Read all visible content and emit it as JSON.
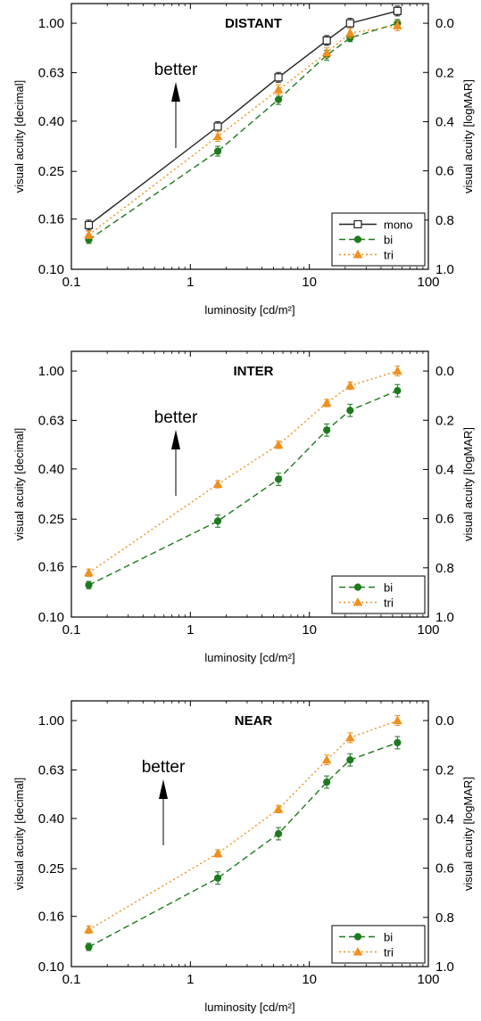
{
  "colors": {
    "mono": "#222222",
    "bi": "#1f7a1f",
    "tri": "#f0901e",
    "frame": "#000000"
  },
  "chart_data": [
    {
      "type": "line",
      "title": "DISTANT",
      "annotation": "better",
      "xlabel": "luminosity [cd/m²]",
      "ylabel": "visual acuity [decimal]",
      "ylabel_right": "visual acuity [logMAR]",
      "x_scale": "log",
      "xlim": [
        0.1,
        100
      ],
      "ylim_logMAR": [
        1.0,
        -0.08
      ],
      "x_ticks": [
        "0.1",
        "1",
        "10",
        "100"
      ],
      "y_ticks": [
        "0.10",
        "0.16",
        "0.25",
        "0.40",
        "0.63",
        "1.00"
      ],
      "y_ticks_right": [
        "0.0",
        "0.2",
        "0.4",
        "0.6",
        "0.8",
        "1.0"
      ],
      "legend": {
        "position": "bottom-right",
        "entries": [
          "mono",
          "bi",
          "tri"
        ]
      },
      "x": [
        0.14,
        1.7,
        5.5,
        14,
        22,
        55
      ],
      "series": [
        {
          "name": "mono",
          "marker": "open-square",
          "line": "solid",
          "color": "#222222",
          "values_logMAR": [
            0.82,
            0.42,
            0.22,
            0.07,
            0.0,
            -0.05
          ],
          "err": [
            0.02,
            0.02,
            0.02,
            0.02,
            0.02,
            0.02
          ]
        },
        {
          "name": "bi",
          "marker": "circle",
          "line": "dashed",
          "color": "#1f7a1f",
          "values_logMAR": [
            0.88,
            0.52,
            0.31,
            0.13,
            0.06,
            0.0
          ],
          "err": [
            0.015,
            0.02,
            0.02,
            0.02,
            0.015,
            0.015
          ]
        },
        {
          "name": "tri",
          "marker": "triangle",
          "line": "dotted",
          "color": "#f0901e",
          "values_logMAR": [
            0.86,
            0.46,
            0.27,
            0.12,
            0.04,
            0.01
          ],
          "err": [
            0.015,
            0.02,
            0.02,
            0.02,
            0.02,
            0.02
          ]
        }
      ]
    },
    {
      "type": "line",
      "title": "INTER",
      "annotation": "better",
      "xlabel": "luminosity [cd/m²]",
      "ylabel": "visual acuity [decimal]",
      "ylabel_right": "visual acuity [logMAR]",
      "x_scale": "log",
      "xlim": [
        0.1,
        100
      ],
      "ylim_logMAR": [
        1.0,
        -0.08
      ],
      "x_ticks": [
        "0.1",
        "1",
        "10",
        "100"
      ],
      "y_ticks": [
        "0.10",
        "0.16",
        "0.25",
        "0.40",
        "0.63",
        "1.00"
      ],
      "y_ticks_right": [
        "0.0",
        "0.2",
        "0.4",
        "0.6",
        "0.8",
        "1.0"
      ],
      "legend": {
        "position": "bottom-right",
        "entries": [
          "bi",
          "tri"
        ]
      },
      "x": [
        0.14,
        1.7,
        5.5,
        14,
        22,
        55
      ],
      "series": [
        {
          "name": "bi",
          "marker": "circle",
          "line": "dashed",
          "color": "#1f7a1f",
          "values_logMAR": [
            0.87,
            0.61,
            0.44,
            0.24,
            0.16,
            0.08
          ],
          "err": [
            0.015,
            0.025,
            0.025,
            0.025,
            0.025,
            0.025
          ]
        },
        {
          "name": "tri",
          "marker": "triangle",
          "line": "dotted",
          "color": "#f0901e",
          "values_logMAR": [
            0.82,
            0.46,
            0.3,
            0.13,
            0.06,
            0.0
          ],
          "err": [
            0.015,
            0.015,
            0.015,
            0.015,
            0.015,
            0.02
          ]
        }
      ]
    },
    {
      "type": "line",
      "title": "NEAR",
      "annotation": "better",
      "xlabel": "luminosity [cd/m²]",
      "ylabel": "visual acuity [decimal]",
      "ylabel_right": "visual acuity [logMAR]",
      "x_scale": "log",
      "xlim": [
        0.1,
        100
      ],
      "ylim_logMAR": [
        1.0,
        -0.08
      ],
      "x_ticks": [
        "0.1",
        "1",
        "10",
        "100"
      ],
      "y_ticks": [
        "0.10",
        "0.16",
        "0.25",
        "0.40",
        "0.63",
        "1.00"
      ],
      "y_ticks_right": [
        "0.0",
        "0.2",
        "0.4",
        "0.6",
        "0.8",
        "1.0"
      ],
      "legend": {
        "position": "bottom-right",
        "entries": [
          "bi",
          "tri"
        ]
      },
      "x": [
        0.14,
        1.7,
        5.5,
        14,
        22,
        55
      ],
      "series": [
        {
          "name": "bi",
          "marker": "circle",
          "line": "dashed",
          "color": "#1f7a1f",
          "values_logMAR": [
            0.92,
            0.64,
            0.46,
            0.25,
            0.16,
            0.09
          ],
          "err": [
            0.015,
            0.025,
            0.025,
            0.025,
            0.025,
            0.025
          ]
        },
        {
          "name": "tri",
          "marker": "triangle",
          "line": "dotted",
          "color": "#f0901e",
          "values_logMAR": [
            0.85,
            0.54,
            0.36,
            0.16,
            0.07,
            0.0
          ],
          "err": [
            0.015,
            0.015,
            0.015,
            0.02,
            0.02,
            0.02
          ]
        }
      ]
    }
  ]
}
